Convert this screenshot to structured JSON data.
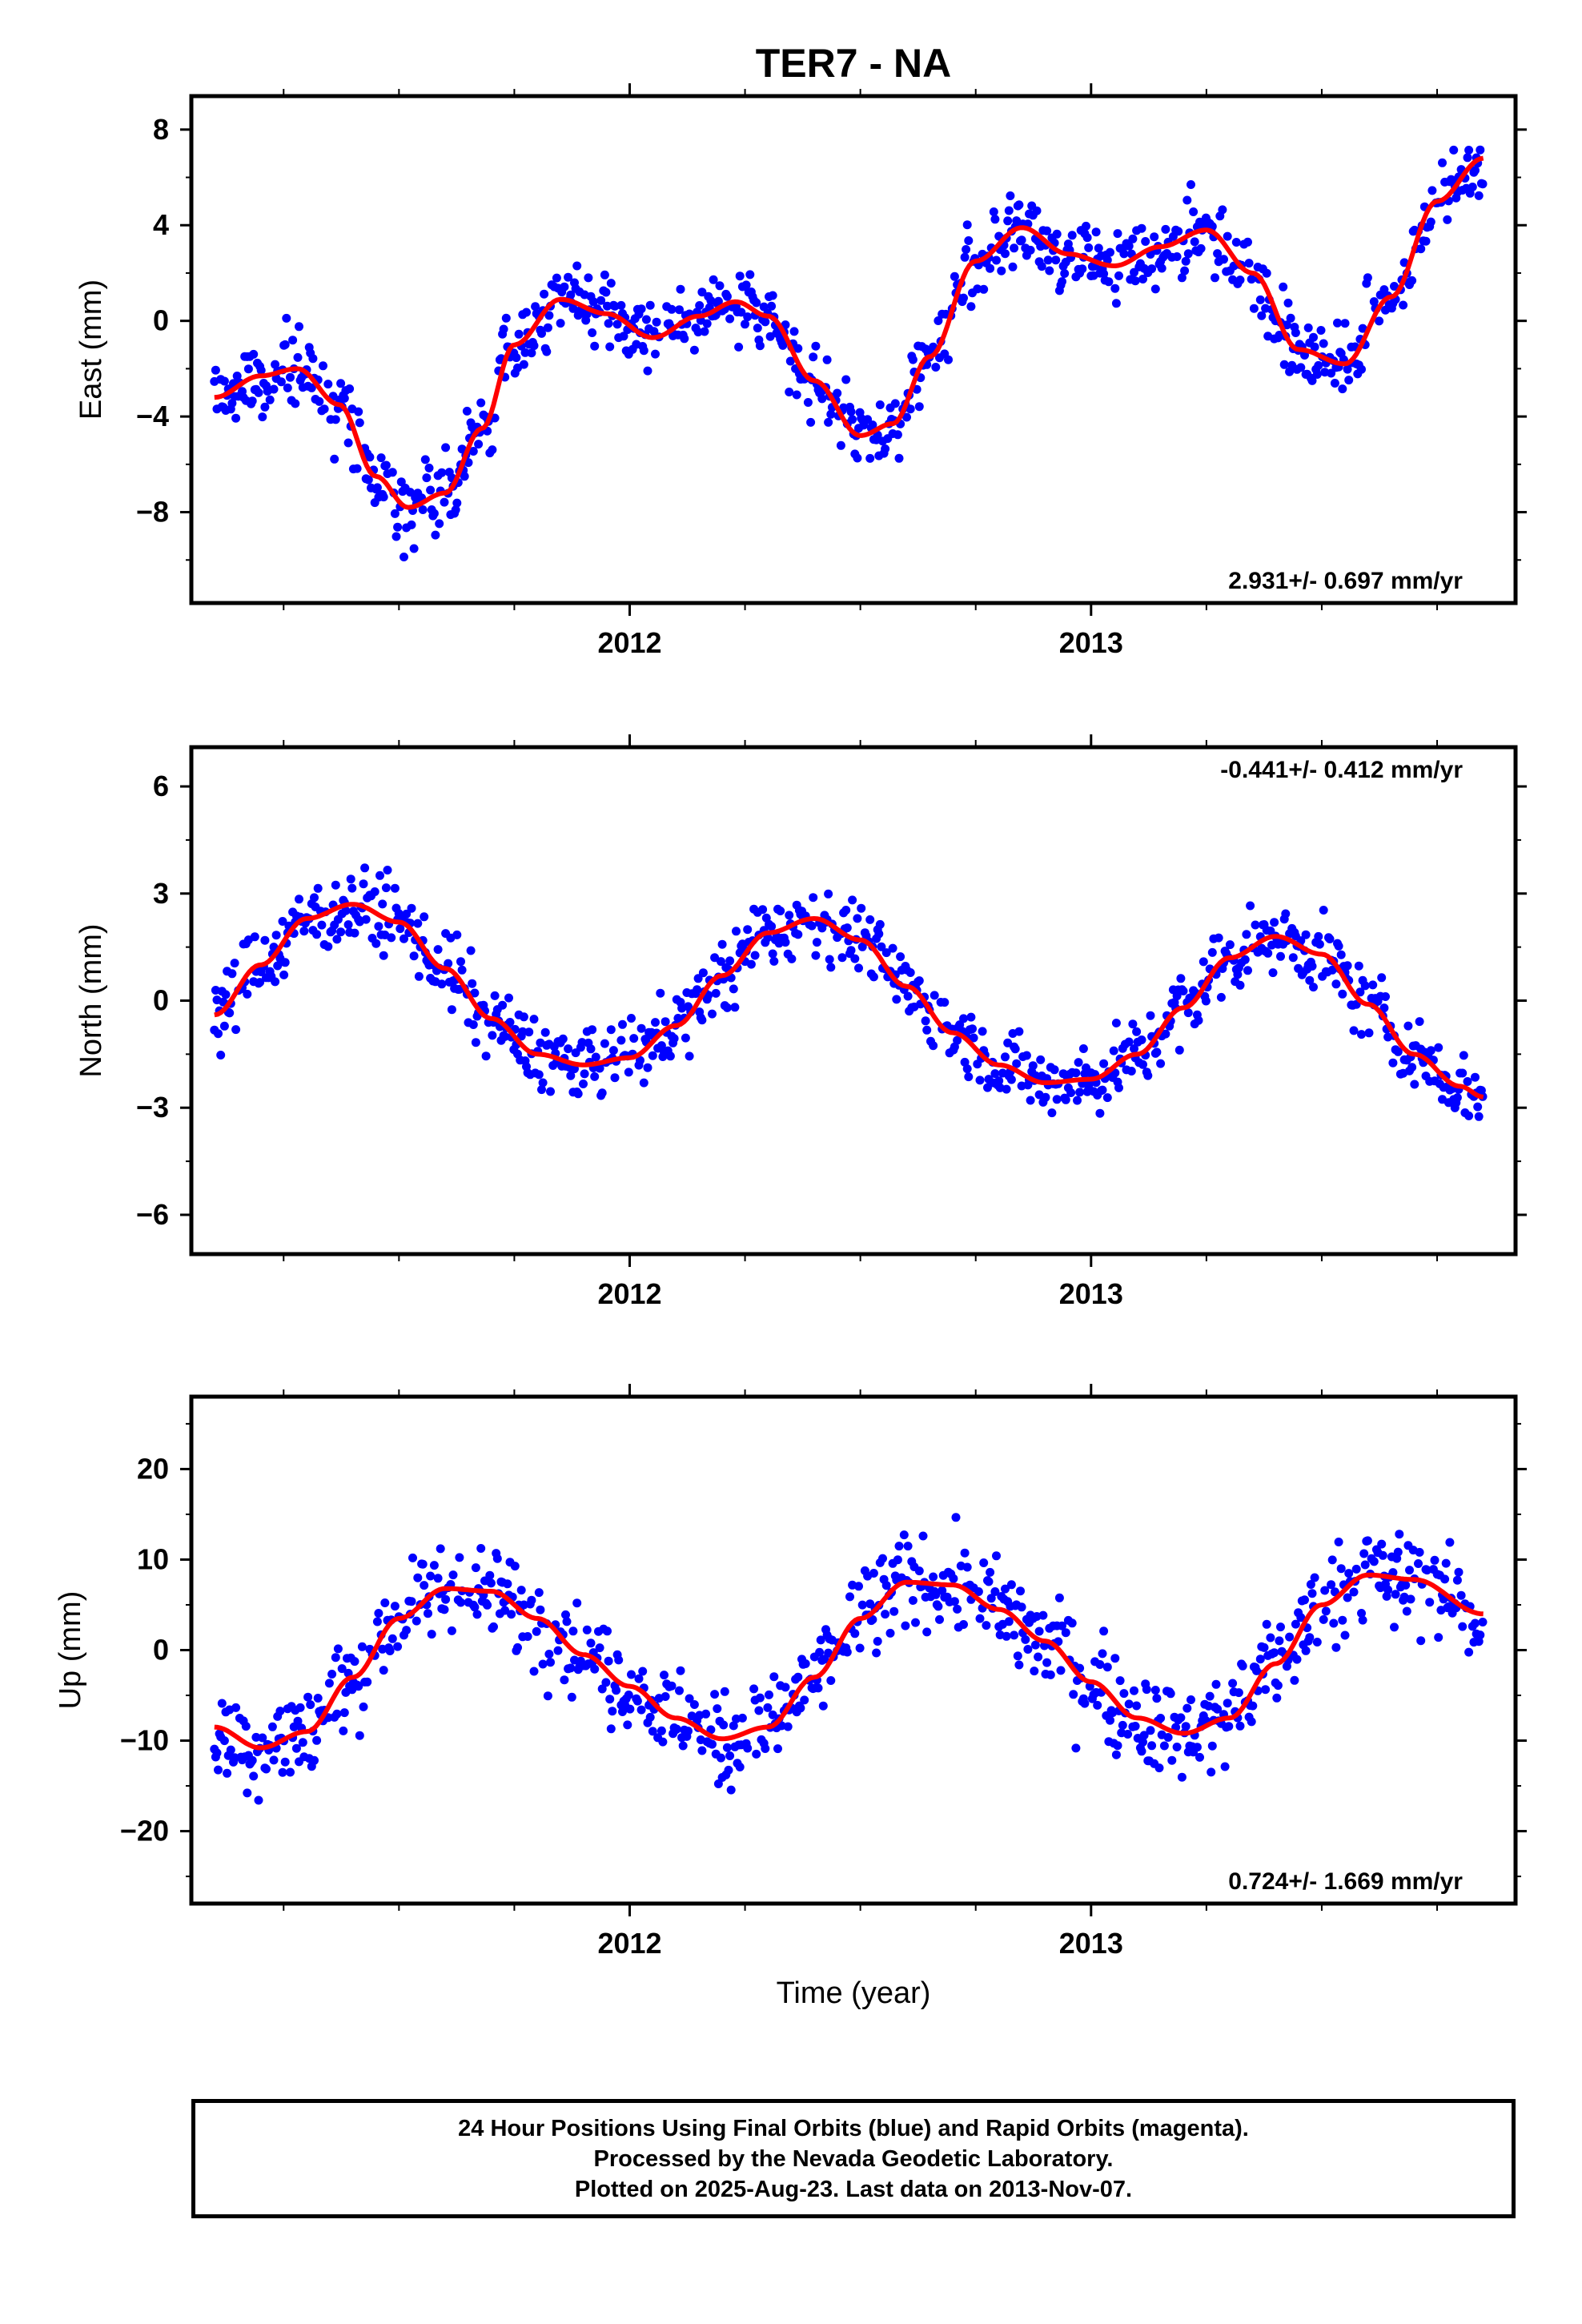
{
  "title": "TER7 - NA",
  "xlabel": "Time (year)",
  "footer": {
    "line1": "24 Hour Positions Using Final Orbits (blue) and Rapid Orbits (magenta).",
    "line2": "Processed by the Nevada Geodetic Laboratory.",
    "line3": "Plotted on 2025-Aug-23. Last data on 2013-Nov-07."
  },
  "colors": {
    "data_points": "#0000ff",
    "fit_curve": "#ff0000",
    "frame": "#000000"
  },
  "chart_data": [
    {
      "type": "scatter",
      "ylabel": "East (mm)",
      "rate": "2.931+/- 0.697 mm/yr",
      "rate_position": "bottom-right",
      "xlim": [
        2011.05,
        2013.92
      ],
      "ylim": [
        -11.8,
        9.4
      ],
      "yticks": [
        8,
        4,
        0,
        -4,
        -8
      ],
      "ytick_labels": [
        "8",
        "4",
        "0",
        "−4",
        "−8"
      ],
      "xticks": [
        2012,
        2013
      ],
      "xtick_labels": [
        "2012",
        "2013"
      ],
      "grid": false,
      "series": [
        {
          "kind": "points",
          "t0": 2011.1,
          "t1": 2013.85,
          "noise": 1.3,
          "y_fit": [
            [
              2011.1,
              -3.2
            ],
            [
              2011.2,
              -2.3
            ],
            [
              2011.28,
              -2.0
            ],
            [
              2011.37,
              -3.5
            ],
            [
              2011.45,
              -6.5
            ],
            [
              2011.52,
              -7.8
            ],
            [
              2011.6,
              -7.2
            ],
            [
              2011.68,
              -4.5
            ],
            [
              2011.75,
              -1.0
            ],
            [
              2011.85,
              0.9
            ],
            [
              2011.95,
              0.3
            ],
            [
              2012.05,
              -0.7
            ],
            [
              2012.15,
              0.2
            ],
            [
              2012.23,
              0.8
            ],
            [
              2012.3,
              0.2
            ],
            [
              2012.4,
              -2.5
            ],
            [
              2012.5,
              -4.8
            ],
            [
              2012.57,
              -4.3
            ],
            [
              2012.65,
              -1.5
            ],
            [
              2012.75,
              2.5
            ],
            [
              2012.85,
              3.9
            ],
            [
              2012.95,
              2.8
            ],
            [
              2013.05,
              2.3
            ],
            [
              2013.15,
              3.1
            ],
            [
              2013.25,
              3.8
            ],
            [
              2013.35,
              2.0
            ],
            [
              2013.45,
              -1.2
            ],
            [
              2013.55,
              -1.8
            ],
            [
              2013.65,
              1.0
            ],
            [
              2013.75,
              5.0
            ],
            [
              2013.85,
              6.8
            ]
          ]
        },
        {
          "kind": "fit",
          "values": [
            [
              2011.1,
              -3.2
            ],
            [
              2011.2,
              -2.3
            ],
            [
              2011.28,
              -2.0
            ],
            [
              2011.37,
              -3.5
            ],
            [
              2011.45,
              -6.5
            ],
            [
              2011.52,
              -7.8
            ],
            [
              2011.6,
              -7.2
            ],
            [
              2011.68,
              -4.5
            ],
            [
              2011.75,
              -1.0
            ],
            [
              2011.85,
              0.9
            ],
            [
              2011.95,
              0.3
            ],
            [
              2012.05,
              -0.7
            ],
            [
              2012.15,
              0.2
            ],
            [
              2012.23,
              0.8
            ],
            [
              2012.3,
              0.2
            ],
            [
              2012.4,
              -2.5
            ],
            [
              2012.5,
              -4.8
            ],
            [
              2012.57,
              -4.3
            ],
            [
              2012.65,
              -1.5
            ],
            [
              2012.75,
              2.5
            ],
            [
              2012.85,
              3.9
            ],
            [
              2012.95,
              2.8
            ],
            [
              2013.05,
              2.3
            ],
            [
              2013.15,
              3.1
            ],
            [
              2013.25,
              3.8
            ],
            [
              2013.35,
              2.0
            ],
            [
              2013.45,
              -1.2
            ],
            [
              2013.55,
              -1.8
            ],
            [
              2013.65,
              1.0
            ],
            [
              2013.75,
              5.0
            ],
            [
              2013.85,
              6.8
            ]
          ]
        }
      ]
    },
    {
      "type": "scatter",
      "ylabel": "North (mm)",
      "rate": "-0.441+/- 0.412 mm/yr",
      "rate_position": "top-right",
      "xlim": [
        2011.05,
        2013.92
      ],
      "ylim": [
        -7.1,
        7.1
      ],
      "yticks": [
        6,
        3,
        0,
        -3,
        -6
      ],
      "ytick_labels": [
        "6",
        "3",
        "0",
        "−3",
        "−6"
      ],
      "xticks": [
        2012,
        2013
      ],
      "xtick_labels": [
        "2012",
        "2013"
      ],
      "grid": false,
      "series": [
        {
          "kind": "points",
          "t0": 2011.1,
          "t1": 2013.85,
          "noise": 0.85,
          "y_fit": [
            [
              2011.1,
              -0.4
            ],
            [
              2011.2,
              1.0
            ],
            [
              2011.3,
              2.3
            ],
            [
              2011.4,
              2.7
            ],
            [
              2011.5,
              2.2
            ],
            [
              2011.6,
              0.9
            ],
            [
              2011.7,
              -0.5
            ],
            [
              2011.8,
              -1.5
            ],
            [
              2011.9,
              -1.8
            ],
            [
              2012.0,
              -1.6
            ],
            [
              2012.1,
              -0.7
            ],
            [
              2012.2,
              0.7
            ],
            [
              2012.3,
              1.9
            ],
            [
              2012.4,
              2.3
            ],
            [
              2012.5,
              1.7
            ],
            [
              2012.6,
              0.4
            ],
            [
              2012.7,
              -0.9
            ],
            [
              2012.8,
              -1.8
            ],
            [
              2012.9,
              -2.3
            ],
            [
              2013.0,
              -2.2
            ],
            [
              2013.1,
              -1.5
            ],
            [
              2013.2,
              -0.2
            ],
            [
              2013.3,
              1.2
            ],
            [
              2013.4,
              1.8
            ],
            [
              2013.5,
              1.3
            ],
            [
              2013.6,
              -0.1
            ],
            [
              2013.7,
              -1.5
            ],
            [
              2013.8,
              -2.4
            ],
            [
              2013.85,
              -2.7
            ]
          ]
        },
        {
          "kind": "fit",
          "values": [
            [
              2011.1,
              -0.4
            ],
            [
              2011.2,
              1.0
            ],
            [
              2011.3,
              2.3
            ],
            [
              2011.4,
              2.7
            ],
            [
              2011.5,
              2.2
            ],
            [
              2011.6,
              0.9
            ],
            [
              2011.7,
              -0.5
            ],
            [
              2011.8,
              -1.5
            ],
            [
              2011.9,
              -1.8
            ],
            [
              2012.0,
              -1.6
            ],
            [
              2012.1,
              -0.7
            ],
            [
              2012.2,
              0.7
            ],
            [
              2012.3,
              1.9
            ],
            [
              2012.4,
              2.3
            ],
            [
              2012.5,
              1.7
            ],
            [
              2012.6,
              0.4
            ],
            [
              2012.7,
              -0.9
            ],
            [
              2012.8,
              -1.8
            ],
            [
              2012.9,
              -2.3
            ],
            [
              2013.0,
              -2.2
            ],
            [
              2013.1,
              -1.5
            ],
            [
              2013.2,
              -0.2
            ],
            [
              2013.3,
              1.2
            ],
            [
              2013.4,
              1.8
            ],
            [
              2013.5,
              1.3
            ],
            [
              2013.6,
              -0.1
            ],
            [
              2013.7,
              -1.5
            ],
            [
              2013.8,
              -2.4
            ],
            [
              2013.85,
              -2.7
            ]
          ]
        }
      ]
    },
    {
      "type": "scatter",
      "ylabel": "Up (mm)",
      "rate": "0.724+/- 1.669 mm/yr",
      "rate_position": "bottom-right",
      "xlim": [
        2011.05,
        2013.92
      ],
      "ylim": [
        -28,
        28
      ],
      "yticks": [
        20,
        10,
        0,
        -10,
        -20
      ],
      "ytick_labels": [
        "20",
        "10",
        "0",
        "−10",
        "−20"
      ],
      "xticks": [
        2012,
        2013
      ],
      "xtick_labels": [
        "2012",
        "2013"
      ],
      "grid": false,
      "series": [
        {
          "kind": "points",
          "t0": 2011.1,
          "t1": 2013.85,
          "noise": 4.5,
          "y_fit": [
            [
              2011.1,
              -8.5
            ],
            [
              2011.2,
              -10.8
            ],
            [
              2011.3,
              -9.0
            ],
            [
              2011.4,
              -3.0
            ],
            [
              2011.5,
              3.5
            ],
            [
              2011.6,
              6.8
            ],
            [
              2011.7,
              6.5
            ],
            [
              2011.8,
              3.5
            ],
            [
              2011.9,
              -0.5
            ],
            [
              2012.0,
              -4.0
            ],
            [
              2012.1,
              -7.5
            ],
            [
              2012.2,
              -9.8
            ],
            [
              2012.3,
              -8.5
            ],
            [
              2012.4,
              -3.0
            ],
            [
              2012.5,
              3.5
            ],
            [
              2012.6,
              7.5
            ],
            [
              2012.7,
              7.2
            ],
            [
              2012.8,
              4.5
            ],
            [
              2012.9,
              1.0
            ],
            [
              2013.0,
              -3.5
            ],
            [
              2013.1,
              -7.5
            ],
            [
              2013.2,
              -9.2
            ],
            [
              2013.3,
              -7.5
            ],
            [
              2013.4,
              -1.5
            ],
            [
              2013.5,
              5.0
            ],
            [
              2013.6,
              8.3
            ],
            [
              2013.7,
              7.8
            ],
            [
              2013.85,
              4.0
            ]
          ]
        },
        {
          "kind": "fit",
          "values": [
            [
              2011.1,
              -8.5
            ],
            [
              2011.2,
              -10.8
            ],
            [
              2011.3,
              -9.0
            ],
            [
              2011.4,
              -3.0
            ],
            [
              2011.5,
              3.5
            ],
            [
              2011.6,
              6.8
            ],
            [
              2011.7,
              6.5
            ],
            [
              2011.8,
              3.5
            ],
            [
              2011.9,
              -0.5
            ],
            [
              2012.0,
              -4.0
            ],
            [
              2012.1,
              -7.5
            ],
            [
              2012.2,
              -9.8
            ],
            [
              2012.3,
              -8.5
            ],
            [
              2012.4,
              -3.0
            ],
            [
              2012.5,
              3.5
            ],
            [
              2012.6,
              7.5
            ],
            [
              2012.7,
              7.2
            ],
            [
              2012.8,
              4.5
            ],
            [
              2012.9,
              1.0
            ],
            [
              2013.0,
              -3.5
            ],
            [
              2013.1,
              -7.5
            ],
            [
              2013.2,
              -9.2
            ],
            [
              2013.3,
              -7.5
            ],
            [
              2013.4,
              -1.5
            ],
            [
              2013.5,
              5.0
            ],
            [
              2013.6,
              8.3
            ],
            [
              2013.7,
              7.8
            ],
            [
              2013.85,
              4.0
            ]
          ]
        }
      ]
    }
  ]
}
